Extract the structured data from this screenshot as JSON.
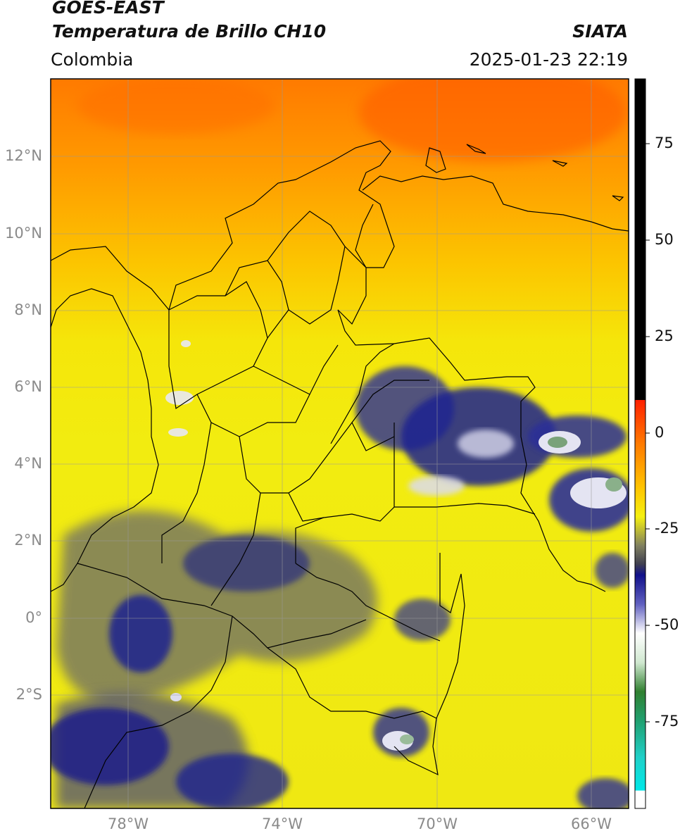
{
  "header": {
    "satellite": "GOES-EAST",
    "product": "Temperatura de Brillo CH10",
    "agency": "SIATA",
    "region": "Colombia",
    "timestamp": "2025-01-23 22:19"
  },
  "map": {
    "lat_labels": [
      "12°N",
      "10°N",
      "8°N",
      "6°N",
      "4°N",
      "2°N",
      "0°",
      "2°S"
    ],
    "lon_labels": [
      "78°W",
      "74°W",
      "70°W",
      "66°W"
    ],
    "grid": true,
    "colors": {
      "warm_orange": "#ff6a00",
      "clear_yellow": "#f5ec10",
      "cold_gray": "#5c5c6e",
      "cold_navy": "#1a1e8a",
      "coldest_white": "#e8e8f4"
    }
  },
  "colorbar": {
    "ticks": [
      "75",
      "50",
      "25",
      "0",
      "-25",
      "-50",
      "-75"
    ],
    "unit_scale": "brightness temperature (°C)"
  }
}
